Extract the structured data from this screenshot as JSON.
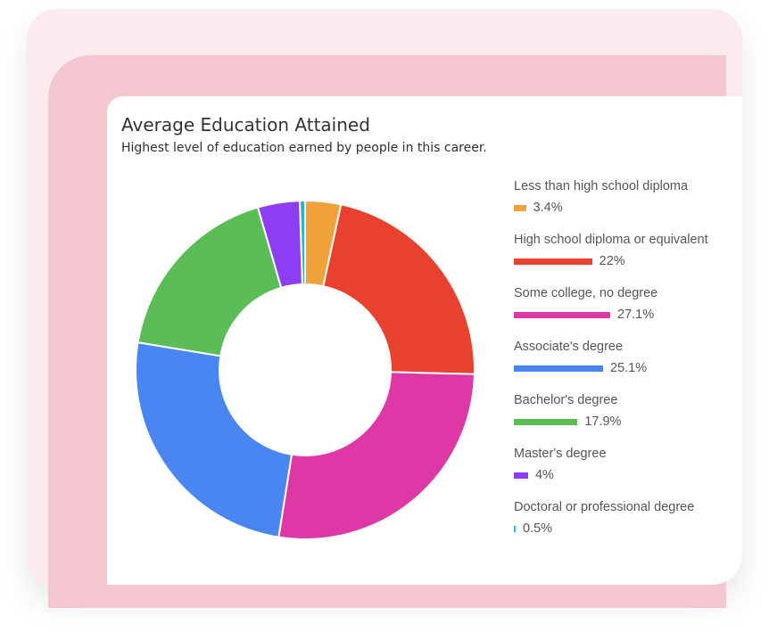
{
  "chart_data": {
    "type": "pie",
    "title": "Average Education Attained",
    "subtitle": "Highest level of education earned by people in this career.",
    "categories": [
      "Less than high school diploma",
      "High school diploma or equivalent",
      "Some college, no degree",
      "Associate's degree",
      "Bachelor's degree",
      "Master's degree",
      "Doctoral or professional degree"
    ],
    "values": [
      3.4,
      22,
      27.1,
      25.1,
      17.9,
      4,
      0.5
    ],
    "value_labels": [
      "3.4%",
      "22%",
      "27.1%",
      "25.1%",
      "17.9%",
      "4%",
      "0.5%"
    ],
    "colors": [
      "#f0a33a",
      "#e8412d",
      "#de38a6",
      "#4a86f2",
      "#5bbd55",
      "#8e3ef2",
      "#2cb3c5"
    ],
    "legend_position": "right",
    "donut": true
  }
}
